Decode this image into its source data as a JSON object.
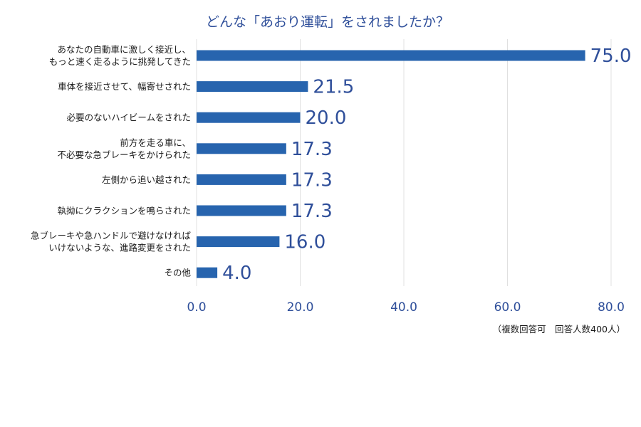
{
  "chart_data": {
    "type": "bar",
    "orientation": "horizontal",
    "title": "どんな「あおり運転」をされましたか？",
    "note": "（複数回答可　回答人数400人）",
    "categories": [
      [
        "あなたの自動車に激しく接近し、",
        "もっと速く走るように挑発してきた"
      ],
      [
        "車体を接近させて、幅寄せされた"
      ],
      [
        "必要のないハイビームをされた"
      ],
      [
        "前方を走る車に、",
        "不必要な急ブレーキをかけられた"
      ],
      [
        "左側から追い越された"
      ],
      [
        "執拗にクラクションを鳴らされた"
      ],
      [
        "急ブレーキや急ハンドルで避けなければ",
        "いけないような、進路変更をされた"
      ],
      [
        "その他"
      ]
    ],
    "values": [
      75.0,
      21.5,
      20.0,
      17.3,
      17.3,
      17.3,
      16.0,
      4.0
    ],
    "value_labels": [
      "75.0",
      "21.5",
      "20.0",
      "17.3",
      "17.3",
      "17.3",
      "16.0",
      "4.0"
    ],
    "xlim": [
      0,
      80
    ],
    "xticks": [
      0,
      20,
      40,
      60,
      80
    ],
    "xtick_labels": [
      "0.0",
      "20.0",
      "40.0",
      "60.0",
      "80.0"
    ],
    "grid": "vertical",
    "legend": "none",
    "colors": {
      "bar": "#2764ae",
      "text_accent": "#2f4f9a",
      "grid": "#e0e0e0"
    }
  }
}
